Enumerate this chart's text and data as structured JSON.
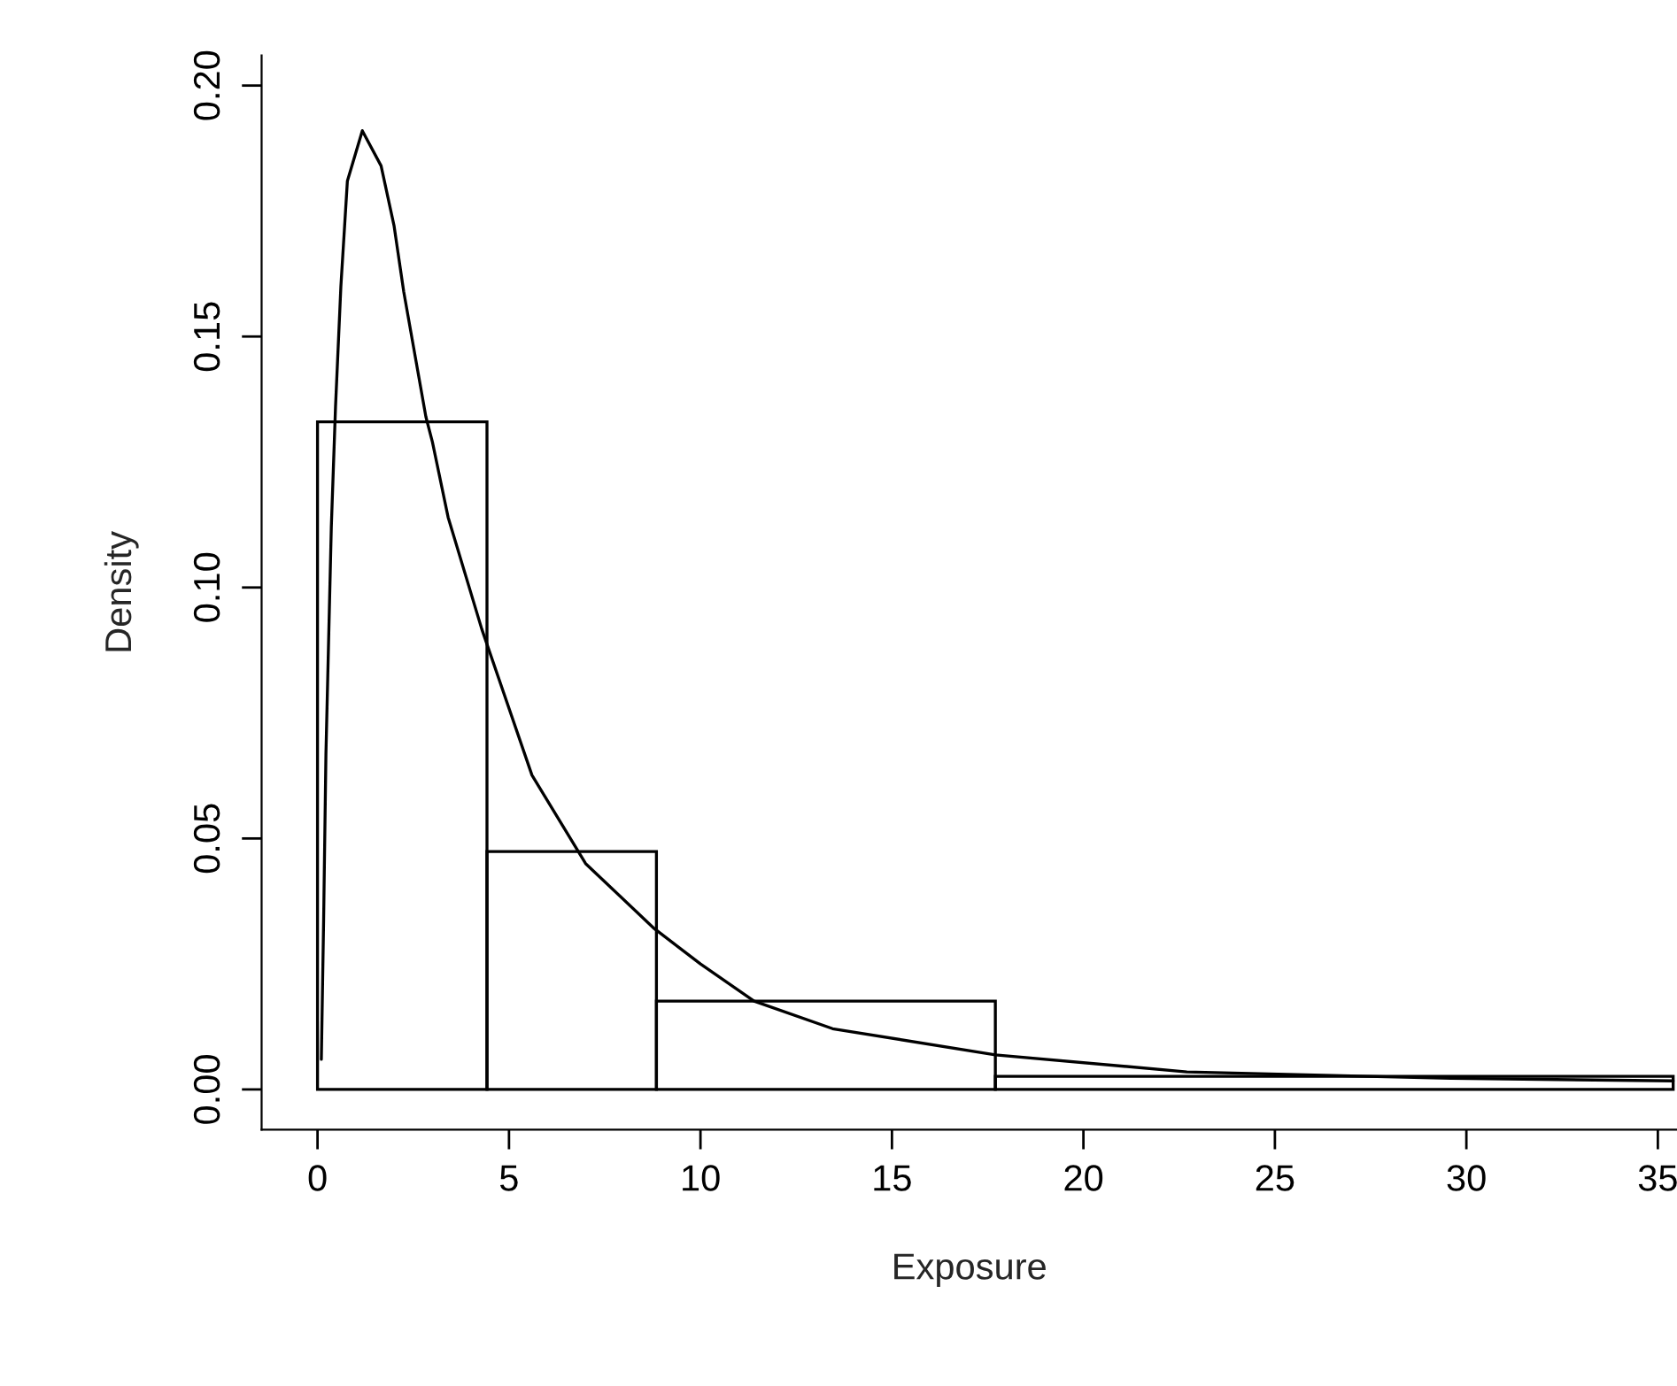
{
  "chart_data": {
    "type": "histogram",
    "xlabel": "Exposure",
    "ylabel": "Density",
    "bins": [
      0,
      4.425,
      8.85,
      17.7,
      35.4
    ],
    "values": [
      0.133,
      0.0474,
      0.0176,
      0.0026
    ],
    "color": "#000000",
    "series": [
      {
        "type": "line",
        "color": "#000000",
        "x": [
          0.1,
          0.16,
          0.22,
          0.36,
          0.47,
          0.61,
          0.78,
          1.17,
          1.66,
          2.0,
          2.25,
          2.83,
          3.0,
          3.41,
          4.29,
          5.6,
          7.0,
          8.8,
          10.0,
          11.4,
          13.45,
          17.7,
          22.7,
          29.6,
          35.4
        ],
        "values": [
          0.006,
          0.034,
          0.067,
          0.112,
          0.136,
          0.16,
          0.181,
          0.191,
          0.184,
          0.172,
          0.159,
          0.134,
          0.129,
          0.114,
          0.0917,
          0.0626,
          0.045,
          0.032,
          0.025,
          0.0176,
          0.0121,
          0.0069,
          0.0035,
          0.0022,
          0.0017
        ]
      }
    ],
    "xlim": [
      -1.46,
      35.5
    ],
    "ylim": [
      -0.008,
      0.206
    ],
    "xticks": [
      0,
      5,
      10,
      15,
      20,
      25,
      30,
      35
    ],
    "yticks": [
      {
        "value": 0,
        "label": "0.00"
      },
      {
        "value": 0.05,
        "label": "0.05"
      },
      {
        "value": 0.1,
        "label": "0.10"
      },
      {
        "value": 0.15,
        "label": "0.15"
      },
      {
        "value": 0.2,
        "label": "0.20"
      }
    ],
    "grid": false
  }
}
